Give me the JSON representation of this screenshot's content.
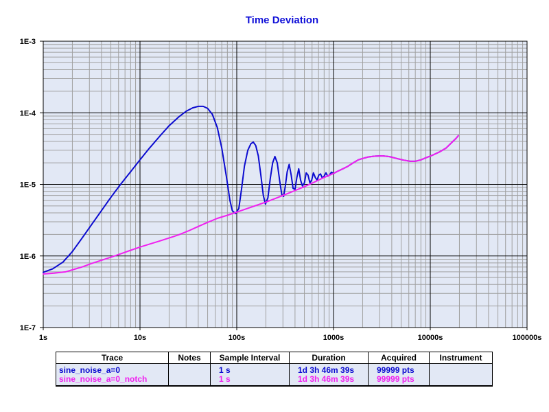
{
  "chart_data": {
    "type": "line",
    "title": "Time Deviation",
    "xscale": "log",
    "yscale": "log",
    "xlim": [
      1,
      100000
    ],
    "ylim": [
      1e-07,
      0.001
    ],
    "x_tick_labels": [
      "1s",
      "10s",
      "100s",
      "1000s",
      "10000s",
      "100000s"
    ],
    "y_tick_labels": [
      "1E-3",
      "1E-4",
      "1E-5",
      "1E-6",
      "1E-7"
    ],
    "grid": true,
    "colors": {
      "plot_background": "#e2e8f5",
      "grid": "#a0a0a0"
    },
    "series": [
      {
        "name": "sine_noise_a=0",
        "color": "#0b0bd0",
        "points": [
          [
            1,
            5.9e-07
          ],
          [
            1.25,
            6.6e-07
          ],
          [
            1.6,
            8.2e-07
          ],
          [
            2,
            1.15e-06
          ],
          [
            2.5,
            1.75e-06
          ],
          [
            3.2,
            2.8e-06
          ],
          [
            4,
            4.3e-06
          ],
          [
            5,
            6.6e-06
          ],
          [
            6.3,
            1e-05
          ],
          [
            8,
            1.5e-05
          ],
          [
            10,
            2.2e-05
          ],
          [
            12.5,
            3.2e-05
          ],
          [
            16,
            4.7e-05
          ],
          [
            20,
            6.6e-05
          ],
          [
            25,
            8.7e-05
          ],
          [
            30,
            0.000105
          ],
          [
            35,
            0.000117
          ],
          [
            40,
            0.000123
          ],
          [
            45,
            0.000123
          ],
          [
            50,
            0.000115
          ],
          [
            56,
            9.5e-05
          ],
          [
            63,
            6.2e-05
          ],
          [
            70,
            3.2e-05
          ],
          [
            78,
            1.3e-05
          ],
          [
            85,
            6e-06
          ],
          [
            90,
            4.3e-06
          ],
          [
            97,
            3.9e-06
          ],
          [
            105,
            4.6e-06
          ],
          [
            112,
            8.5e-06
          ],
          [
            120,
            1.8e-05
          ],
          [
            130,
            3e-05
          ],
          [
            140,
            3.7e-05
          ],
          [
            148,
            3.9e-05
          ],
          [
            157,
            3.5e-05
          ],
          [
            167,
            2.5e-05
          ],
          [
            178,
            1.3e-05
          ],
          [
            188,
            7e-06
          ],
          [
            198,
            5.3e-06
          ],
          [
            210,
            6.5e-06
          ],
          [
            222,
            1.2e-05
          ],
          [
            235,
            2e-05
          ],
          [
            248,
            2.45e-05
          ],
          [
            262,
            2e-05
          ],
          [
            277,
            1.15e-05
          ],
          [
            292,
            7.2e-06
          ],
          [
            305,
            6.8e-06
          ],
          [
            318,
            9.5e-06
          ],
          [
            332,
            1.5e-05
          ],
          [
            348,
            1.9e-05
          ],
          [
            365,
            1.35e-05
          ],
          [
            382,
            8.8e-06
          ],
          [
            400,
            8.5e-06
          ],
          [
            418,
            1.25e-05
          ],
          [
            437,
            1.65e-05
          ],
          [
            457,
            1.15e-05
          ],
          [
            477,
            9.5e-06
          ],
          [
            500,
            1.05e-05
          ],
          [
            522,
            1.45e-05
          ],
          [
            545,
            1.35e-05
          ],
          [
            570,
            1.05e-05
          ],
          [
            595,
            1.15e-05
          ],
          [
            620,
            1.45e-05
          ],
          [
            648,
            1.25e-05
          ],
          [
            676,
            1.15e-05
          ],
          [
            705,
            1.35e-05
          ],
          [
            735,
            1.4e-05
          ],
          [
            765,
            1.23e-05
          ],
          [
            800,
            1.3e-05
          ],
          [
            835,
            1.45e-05
          ],
          [
            870,
            1.3e-05
          ],
          [
            910,
            1.35e-05
          ],
          [
            950,
            1.48e-05
          ],
          [
            1000,
            1.42e-05
          ],
          [
            1100,
            1.52e-05
          ],
          [
            1250,
            1.65e-05
          ],
          [
            1400,
            1.78e-05
          ],
          [
            1600,
            2e-05
          ],
          [
            1800,
            2.2e-05
          ],
          [
            2000,
            2.3e-05
          ],
          [
            2300,
            2.42e-05
          ],
          [
            2700,
            2.48e-05
          ],
          [
            3200,
            2.5e-05
          ],
          [
            3800,
            2.44e-05
          ],
          [
            4500,
            2.3e-05
          ],
          [
            5300,
            2.18e-05
          ],
          [
            6200,
            2.1e-05
          ],
          [
            7000,
            2.1e-05
          ],
          [
            8000,
            2.2e-05
          ],
          [
            9000,
            2.35e-05
          ],
          [
            10500,
            2.55e-05
          ],
          [
            12500,
            2.85e-05
          ],
          [
            14500,
            3.2e-05
          ],
          [
            16500,
            3.8e-05
          ],
          [
            18500,
            4.4e-05
          ],
          [
            19500,
            4.8e-05
          ]
        ]
      },
      {
        "name": "sine_noise_a=0_notch",
        "color": "#f020f0",
        "points": [
          [
            1,
            5.6e-07
          ],
          [
            1.3,
            5.75e-07
          ],
          [
            1.7,
            6e-07
          ],
          [
            2,
            6.4e-07
          ],
          [
            2.5,
            7e-07
          ],
          [
            3.2,
            7.9e-07
          ],
          [
            4,
            8.7e-07
          ],
          [
            5,
            9.6e-07
          ],
          [
            6.3,
            1.07e-06
          ],
          [
            8,
            1.2e-06
          ],
          [
            10,
            1.33e-06
          ],
          [
            12.5,
            1.46e-06
          ],
          [
            16,
            1.62e-06
          ],
          [
            20,
            1.78e-06
          ],
          [
            25,
            1.97e-06
          ],
          [
            32,
            2.25e-06
          ],
          [
            40,
            2.58e-06
          ],
          [
            50,
            2.95e-06
          ],
          [
            63,
            3.35e-06
          ],
          [
            80,
            3.7e-06
          ],
          [
            100,
            4.1e-06
          ],
          [
            125,
            4.55e-06
          ],
          [
            160,
            5.1e-06
          ],
          [
            200,
            5.65e-06
          ],
          [
            250,
            6.35e-06
          ],
          [
            320,
            7.25e-06
          ],
          [
            400,
            8.2e-06
          ],
          [
            500,
            9.3e-06
          ],
          [
            630,
            1.07e-05
          ],
          [
            800,
            1.25e-05
          ],
          [
            1000,
            1.42e-05
          ],
          [
            1100,
            1.52e-05
          ],
          [
            1250,
            1.65e-05
          ],
          [
            1400,
            1.78e-05
          ],
          [
            1600,
            2e-05
          ],
          [
            1800,
            2.2e-05
          ],
          [
            2000,
            2.3e-05
          ],
          [
            2300,
            2.42e-05
          ],
          [
            2700,
            2.48e-05
          ],
          [
            3200,
            2.5e-05
          ],
          [
            3800,
            2.44e-05
          ],
          [
            4500,
            2.3e-05
          ],
          [
            5300,
            2.18e-05
          ],
          [
            6200,
            2.1e-05
          ],
          [
            7000,
            2.1e-05
          ],
          [
            8000,
            2.2e-05
          ],
          [
            9000,
            2.35e-05
          ],
          [
            10500,
            2.55e-05
          ],
          [
            12500,
            2.85e-05
          ],
          [
            14500,
            3.2e-05
          ],
          [
            16500,
            3.8e-05
          ],
          [
            18500,
            4.4e-05
          ],
          [
            19500,
            4.8e-05
          ]
        ]
      }
    ]
  },
  "legend_table": {
    "headers": [
      "Trace",
      "Notes",
      "Sample Interval",
      "Duration",
      "Acquired",
      "Instrument"
    ],
    "rows": [
      {
        "trace": "sine_noise_a=0",
        "notes": "",
        "sample_interval": "1 s",
        "duration": "1d 3h 46m 39s",
        "acquired": "99999 pts",
        "instrument": "",
        "color": "#0b0bd0"
      },
      {
        "trace": "sine_noise_a=0_notch",
        "notes": "",
        "sample_interval": "1 s",
        "duration": "1d 3h 46m 39s",
        "acquired": "99999 pts",
        "instrument": "",
        "color": "#f020f0"
      }
    ]
  }
}
